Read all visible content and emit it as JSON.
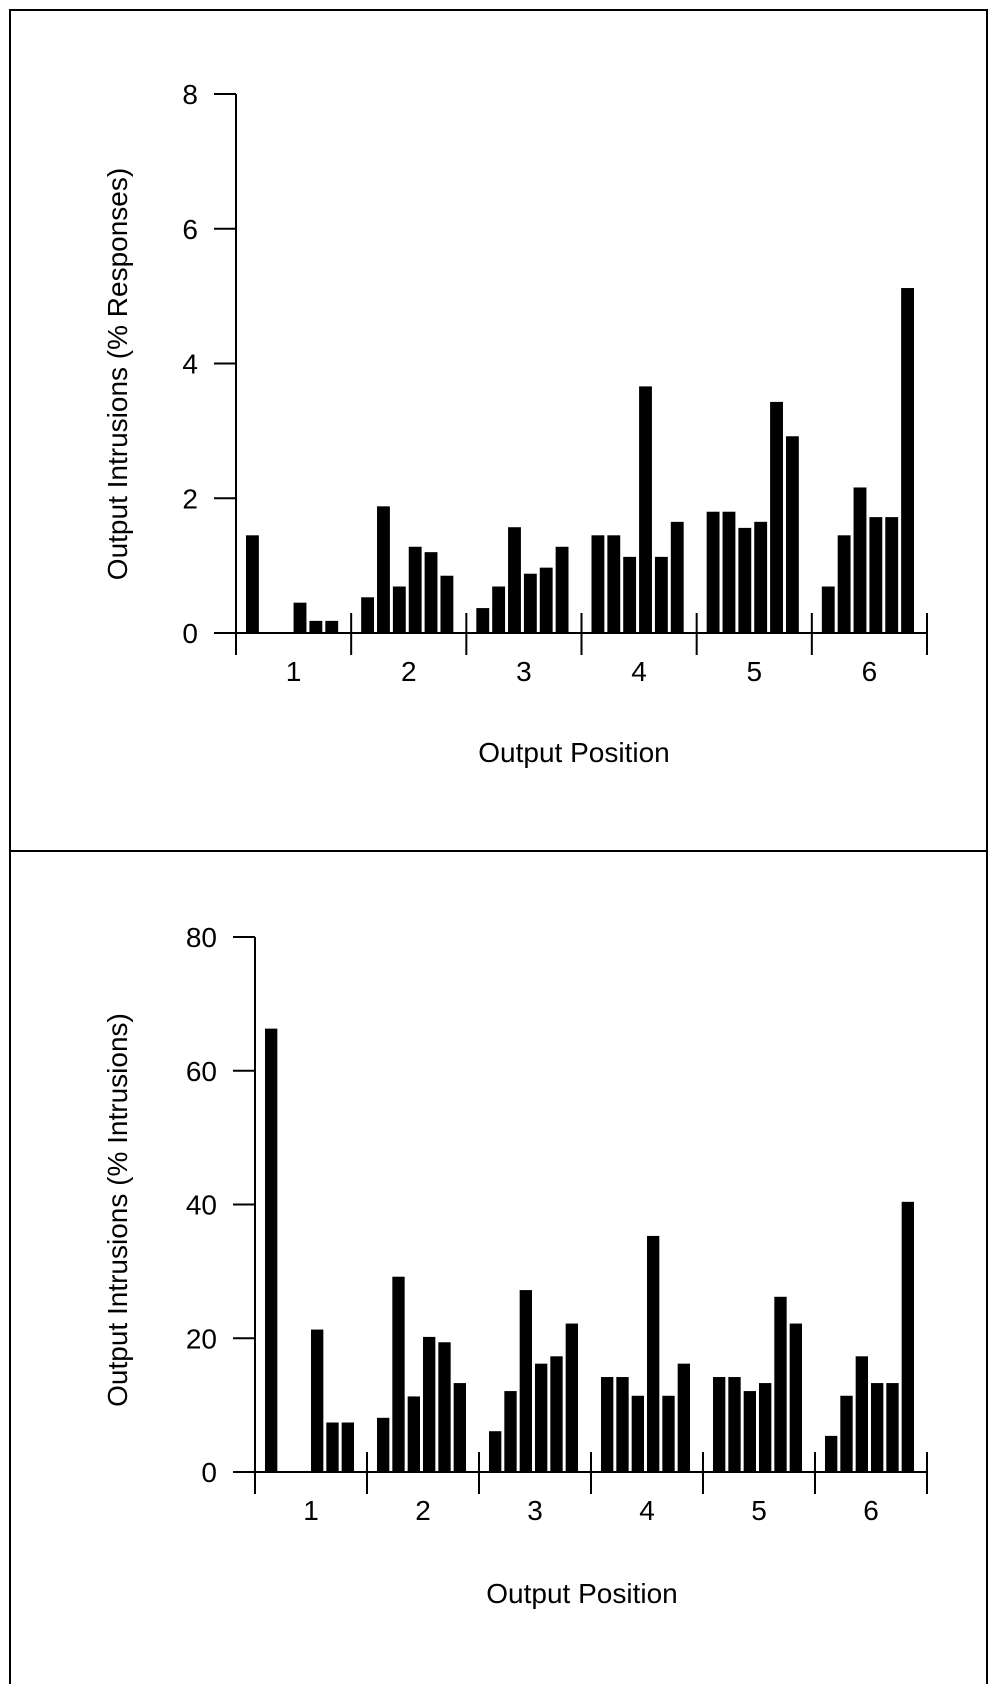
{
  "chart_data": [
    {
      "type": "bar",
      "xlabel": "Output Position",
      "ylabel": "Output Intrusions (% Responses)",
      "ylim": [
        0,
        8
      ],
      "yticks": [
        "0",
        "2",
        "4",
        "6",
        "8"
      ],
      "categories": [
        "1",
        "2",
        "3",
        "4",
        "5",
        "6"
      ],
      "bars_per_group": 6,
      "groups": [
        [
          1.45,
          0,
          0,
          0.45,
          0.18,
          0.18
        ],
        [
          0.53,
          1.88,
          0.69,
          1.28,
          1.2,
          0.85
        ],
        [
          0.37,
          0.69,
          1.57,
          0.88,
          0.97,
          1.28
        ],
        [
          1.45,
          1.45,
          1.13,
          3.66,
          1.13,
          1.65
        ],
        [
          1.8,
          1.8,
          1.56,
          1.65,
          3.43,
          2.92
        ],
        [
          0.69,
          1.45,
          2.16,
          1.72,
          1.72,
          5.12
        ]
      ],
      "bar_color": "#000000"
    },
    {
      "type": "bar",
      "xlabel": "Output Position",
      "ylabel": "Output Intrusions (% Intrusions)",
      "ylim": [
        0,
        80
      ],
      "yticks": [
        "0",
        "20",
        "40",
        "60",
        "80"
      ],
      "categories": [
        "1",
        "2",
        "3",
        "4",
        "5",
        "6"
      ],
      "bars_per_group": 6,
      "groups": [
        [
          66.3,
          0,
          0,
          21.3,
          7.4,
          7.4
        ],
        [
          8.1,
          29.2,
          11.3,
          20.2,
          19.4,
          13.3
        ],
        [
          6.1,
          12.1,
          27.2,
          16.2,
          17.3,
          22.2
        ],
        [
          14.2,
          14.2,
          11.4,
          35.3,
          11.4,
          16.2
        ],
        [
          14.2,
          14.2,
          12.1,
          13.3,
          26.2,
          22.2
        ],
        [
          5.4,
          11.4,
          17.3,
          13.3,
          13.3,
          40.4
        ]
      ],
      "bar_color": "#000000"
    }
  ]
}
